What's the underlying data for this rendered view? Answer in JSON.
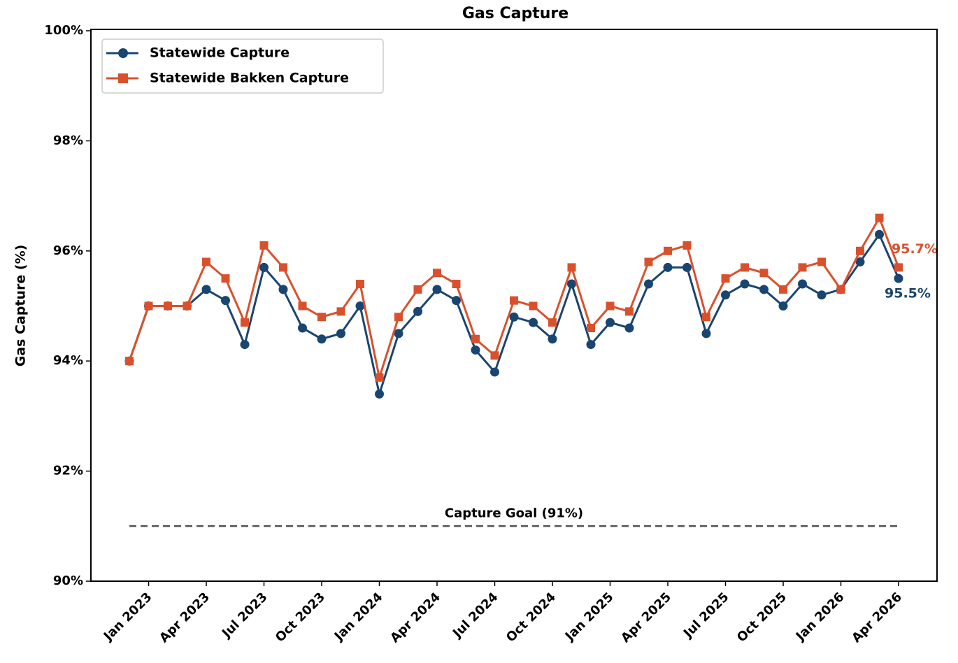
{
  "chart_data": {
    "type": "line",
    "title": "Gas Capture",
    "ylabel": "Gas Capture (%)",
    "x": [
      "2022-12",
      "2023-01",
      "2023-02",
      "2023-03",
      "2023-04",
      "2023-05",
      "2023-06",
      "2023-07",
      "2023-08",
      "2023-09",
      "2023-10",
      "2023-11",
      "2023-12",
      "2024-01",
      "2024-02",
      "2024-03",
      "2024-04",
      "2024-05",
      "2024-06",
      "2024-07",
      "2024-08",
      "2024-09",
      "2024-10",
      "2024-11",
      "2024-12",
      "2025-01",
      "2025-02",
      "2025-03",
      "2025-04",
      "2025-05",
      "2025-06",
      "2025-07",
      "2025-08",
      "2025-09",
      "2025-10",
      "2025-11",
      "2025-12",
      "2026-01",
      "2026-02",
      "2026-03",
      "2026-04"
    ],
    "series": [
      {
        "name": "Statewide Capture",
        "color": "#1a4570",
        "marker": "circle",
        "values": [
          94.0,
          95.0,
          95.0,
          95.0,
          95.3,
          95.1,
          94.3,
          95.7,
          95.3,
          94.6,
          94.4,
          94.5,
          95.0,
          93.4,
          94.5,
          94.9,
          95.3,
          95.1,
          94.2,
          93.8,
          94.8,
          94.7,
          94.4,
          95.4,
          94.3,
          94.7,
          94.6,
          95.4,
          95.7,
          95.7,
          94.5,
          95.2,
          95.4,
          95.3,
          95.0,
          95.4,
          95.2,
          95.3,
          95.8,
          96.3,
          95.5
        ],
        "value_labels": [
          null,
          null,
          null,
          null,
          null,
          null,
          null,
          null,
          null,
          null,
          null,
          null,
          null,
          null,
          null,
          null,
          null,
          null,
          null,
          null,
          null,
          null,
          null,
          null,
          null,
          null,
          null,
          null,
          null,
          null,
          null,
          null,
          null,
          null,
          null,
          null,
          null,
          null,
          null,
          null,
          "95.5%"
        ]
      },
      {
        "name": "Statewide Bakken Capture",
        "color": "#d9512c",
        "marker": "square",
        "values": [
          94.0,
          95.0,
          95.0,
          95.0,
          95.8,
          95.5,
          94.7,
          96.1,
          95.7,
          95.0,
          94.8,
          94.9,
          95.4,
          93.7,
          94.8,
          95.3,
          95.6,
          95.4,
          94.4,
          94.1,
          95.1,
          95.0,
          94.7,
          95.7,
          94.6,
          95.0,
          94.9,
          95.8,
          96.0,
          96.1,
          94.8,
          95.5,
          95.7,
          95.6,
          95.3,
          95.7,
          95.8,
          95.3,
          96.0,
          96.6,
          95.7
        ],
        "value_labels": [
          null,
          null,
          null,
          null,
          null,
          null,
          null,
          null,
          null,
          null,
          null,
          null,
          null,
          null,
          null,
          null,
          null,
          null,
          null,
          null,
          null,
          null,
          null,
          null,
          null,
          null,
          null,
          null,
          null,
          null,
          null,
          null,
          null,
          null,
          null,
          null,
          null,
          null,
          null,
          null,
          "95.7%"
        ]
      }
    ],
    "goal": {
      "value": 91,
      "label": "Capture Goal (91%)",
      "color": "#555555"
    },
    "xlim": [
      "2022-10",
      "2026-06"
    ],
    "xticks": [
      {
        "value": "2023-01",
        "label": "Jan 2023"
      },
      {
        "value": "2023-04",
        "label": "Apr 2023"
      },
      {
        "value": "2023-07",
        "label": "Jul 2023"
      },
      {
        "value": "2023-10",
        "label": "Oct 2023"
      },
      {
        "value": "2024-01",
        "label": "Jan 2024"
      },
      {
        "value": "2024-04",
        "label": "Apr 2024"
      },
      {
        "value": "2024-07",
        "label": "Jul 2024"
      },
      {
        "value": "2024-10",
        "label": "Oct 2024"
      },
      {
        "value": "2025-01",
        "label": "Jan 2025"
      },
      {
        "value": "2025-04",
        "label": "Apr 2025"
      },
      {
        "value": "2025-07",
        "label": "Jul 2025"
      },
      {
        "value": "2025-10",
        "label": "Oct 2025"
      },
      {
        "value": "2026-01",
        "label": "Jan 2026"
      },
      {
        "value": "2026-04",
        "label": "Apr 2026"
      }
    ],
    "ylim": [
      90,
      100
    ],
    "yticks": [
      {
        "value": 90,
        "label": "90%"
      },
      {
        "value": 92,
        "label": "92%"
      },
      {
        "value": 94,
        "label": "94%"
      },
      {
        "value": 96,
        "label": "96%"
      },
      {
        "value": 98,
        "label": "98%"
      },
      {
        "value": 100,
        "label": "100%"
      }
    ],
    "grid": false,
    "legend": "upper left"
  }
}
